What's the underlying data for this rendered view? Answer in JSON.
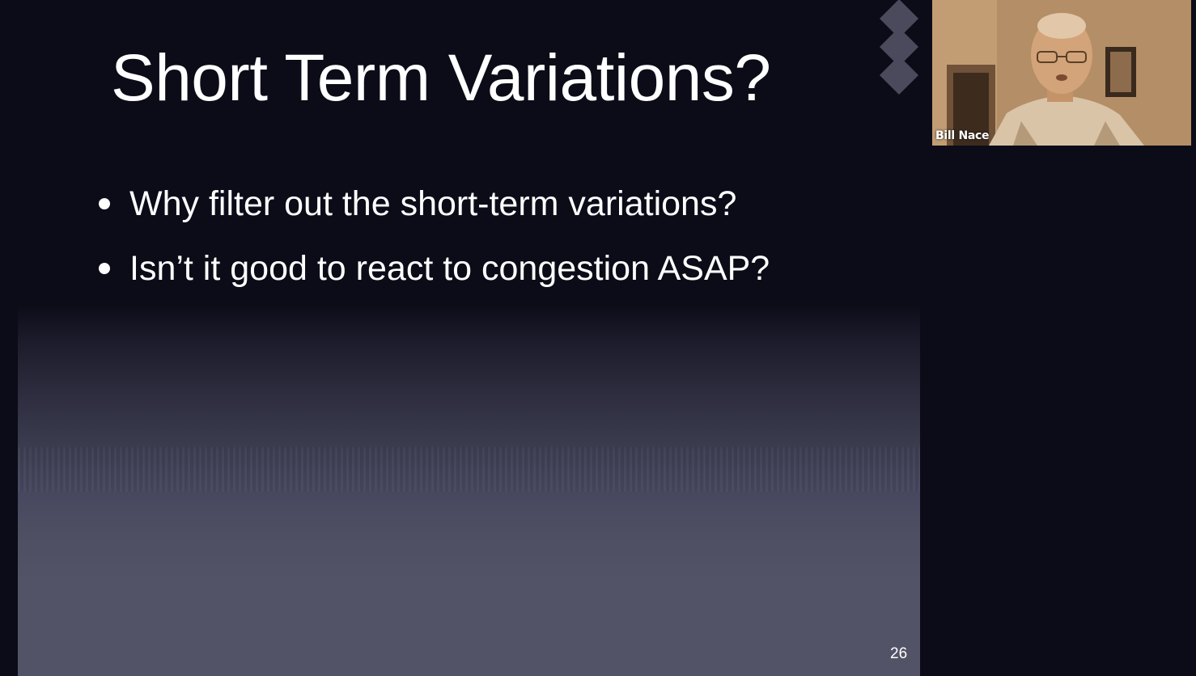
{
  "slide": {
    "title": "Short Term Variations?",
    "bullets": [
      "Why filter out the short-term variations?",
      "Isn’t it good to react to congestion ASAP?"
    ],
    "page_number": "26"
  },
  "video": {
    "participant_name": "Bill Nace"
  },
  "colors": {
    "background": "#0c0c19",
    "slide_bottom": "#535368",
    "diamond": "#4a4a5c",
    "video_tone": "#b08a63"
  }
}
